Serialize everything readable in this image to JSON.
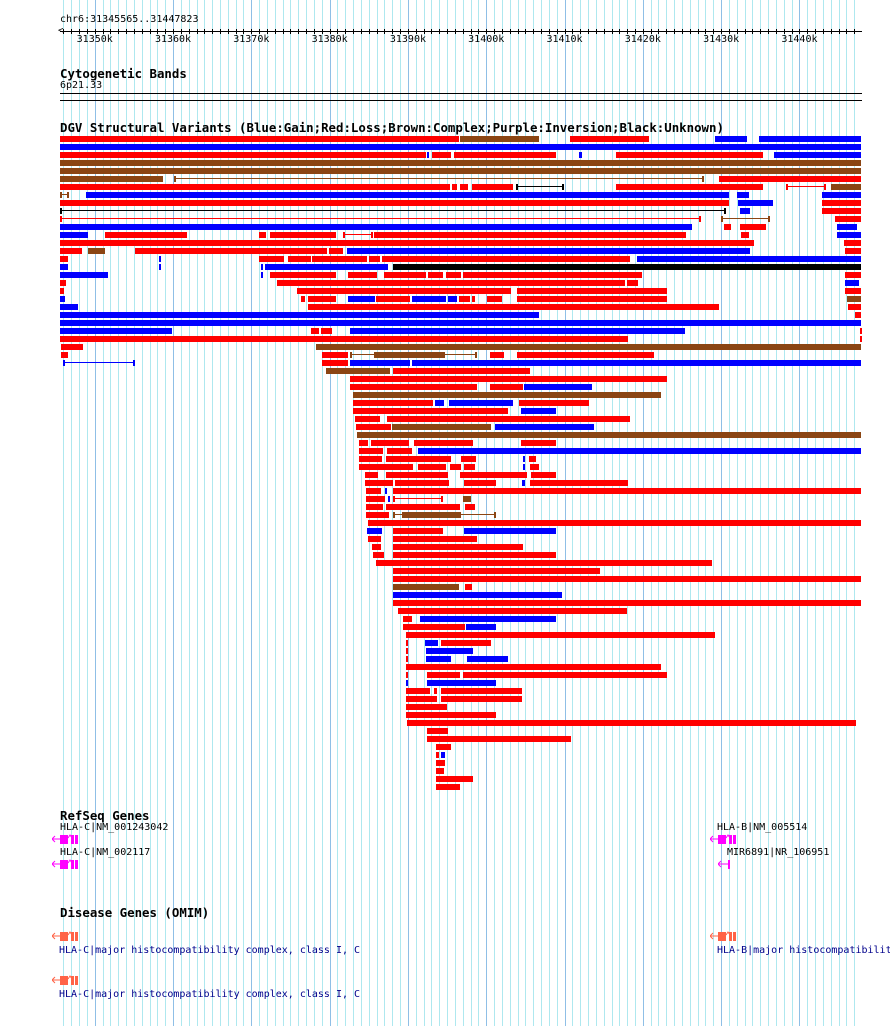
{
  "region": {
    "label": "chr6:31345565..31447823",
    "start_bp": 31345565,
    "end_bp": 31447823
  },
  "ruler": {
    "tick_labels": [
      "31350k",
      "31360k",
      "31370k",
      "31380k",
      "31390k",
      "31400k",
      "31410k",
      "31420k",
      "31430k",
      "31440k"
    ],
    "tick_values_kb": [
      31350,
      31360,
      31370,
      31380,
      31390,
      31400,
      31410,
      31420,
      31430,
      31440
    ]
  },
  "cytoband": {
    "title": "Cytogenetic Bands",
    "band": "6p21.33"
  },
  "dgv": {
    "title": "DGV Structural Variants (Blue:Gain;Red:Loss;Brown:Complex;Purple:Inversion;Black:Unknown)",
    "colors": {
      "r": "#ff0000",
      "b": "#0000ff",
      "n": "#8b4513",
      "k": "#000000"
    },
    "units": "kb from region start",
    "rows": [
      [
        [
          0,
          51.0,
          "r"
        ],
        [
          51.1,
          61.2,
          "n"
        ],
        [
          65.1,
          75.2,
          "r"
        ],
        [
          83.7,
          87.7,
          "b"
        ],
        [
          89.3,
          102.3,
          "b"
        ]
      ],
      [
        [
          0,
          102.3,
          "b"
        ]
      ],
      [
        [
          0,
          46.7,
          "r"
        ],
        [
          46.9,
          47.1,
          "b"
        ],
        [
          47.5,
          49.9,
          "r"
        ],
        [
          50.3,
          63.3,
          "r"
        ],
        [
          66.3,
          66.7,
          "b"
        ],
        [
          71.0,
          89.8,
          "r"
        ],
        [
          91.2,
          102.3,
          "b"
        ]
      ],
      [
        [
          0,
          102.3,
          "n"
        ]
      ],
      [
        [
          0,
          102.3,
          "n"
        ]
      ],
      [
        [
          0,
          13.2,
          "n"
        ],
        [
          14.6,
          82.2,
          "nl"
        ],
        [
          84.2,
          102.3,
          "r"
        ]
      ],
      [
        [
          0,
          49.8,
          "r"
        ],
        [
          50.1,
          50.7,
          "r"
        ],
        [
          51.1,
          52.1,
          "r"
        ],
        [
          52.6,
          57.9,
          "r"
        ],
        [
          58.2,
          64.4,
          "kl"
        ],
        [
          71.0,
          89.8,
          "r"
        ],
        [
          92.7,
          97.8,
          "rl"
        ],
        [
          98.5,
          102.3,
          "n"
        ]
      ],
      [
        [
          0,
          1.1,
          "nl"
        ],
        [
          3.3,
          85.4,
          "b"
        ],
        [
          86.5,
          88.0,
          "b"
        ],
        [
          97.3,
          102.3,
          "b"
        ]
      ],
      [
        [
          0,
          85.4,
          "r"
        ],
        [
          86.6,
          91.1,
          "b"
        ],
        [
          97.3,
          102.3,
          "r"
        ]
      ],
      [
        [
          0,
          85.1,
          "kl"
        ],
        [
          86.8,
          88.1,
          "b"
        ],
        [
          97.3,
          102.3,
          "r"
        ]
      ],
      [
        [
          0,
          81.9,
          "rl"
        ],
        [
          84.4,
          90.7,
          "nl"
        ],
        [
          99.0,
          102.3,
          "r"
        ]
      ],
      [
        [
          0,
          80.7,
          "b"
        ],
        [
          84.8,
          85.7,
          "r"
        ],
        [
          86.8,
          90.2,
          "r"
        ],
        [
          99.2,
          101.8,
          "b"
        ]
      ],
      [
        [
          0,
          3.6,
          "b"
        ],
        [
          5.7,
          16.2,
          "r"
        ],
        [
          25.4,
          26.3,
          "r"
        ],
        [
          26.8,
          35.2,
          "r"
        ],
        [
          36.1,
          40.0,
          "rl"
        ],
        [
          40.1,
          80.0,
          "r"
        ],
        [
          87.0,
          88.0,
          "r"
        ],
        [
          99.2,
          102.3,
          "b"
        ]
      ],
      [
        [
          0,
          88.6,
          "r"
        ],
        [
          100.1,
          102.3,
          "r"
        ]
      ],
      [
        [
          0,
          2.8,
          "r"
        ],
        [
          3.6,
          5.7,
          "n"
        ],
        [
          9.6,
          34.1,
          "r"
        ],
        [
          34.4,
          36.1,
          "r"
        ],
        [
          36.7,
          88.1,
          "b"
        ],
        [
          100.3,
          102.3,
          "r"
        ]
      ],
      [
        [
          0,
          1.0,
          "r"
        ],
        [
          12.6,
          12.9,
          "b"
        ],
        [
          25.4,
          28.6,
          "r"
        ],
        [
          29.1,
          32.1,
          "r"
        ],
        [
          32.2,
          39.2,
          "r"
        ],
        [
          39.5,
          40.9,
          "r"
        ],
        [
          41.1,
          72.8,
          "r"
        ],
        [
          73.7,
          102.3,
          "b"
        ]
      ],
      [
        [
          0,
          1.0,
          "b"
        ],
        [
          12.6,
          12.9,
          "b"
        ],
        [
          25.7,
          25.9,
          "b"
        ],
        [
          26.2,
          41.9,
          "b"
        ],
        [
          42.5,
          102.3,
          "k"
        ]
      ],
      [
        [
          0,
          6.1,
          "b"
        ],
        [
          25.7,
          25.9,
          "b"
        ],
        [
          26.8,
          35.2,
          "r"
        ],
        [
          36.8,
          40.5,
          "r"
        ],
        [
          41.4,
          46.7,
          "r"
        ],
        [
          47.0,
          48.9,
          "r"
        ],
        [
          49.3,
          51.2,
          "r"
        ],
        [
          51.5,
          74.3,
          "r"
        ],
        [
          100.3,
          102.3,
          "r"
        ]
      ],
      [
        [
          0,
          0.8,
          "r"
        ],
        [
          27.7,
          72.2,
          "r"
        ],
        [
          72.4,
          73.8,
          "r"
        ],
        [
          100.3,
          102.0,
          "b"
        ]
      ],
      [
        [
          0,
          0.5,
          "r"
        ],
        [
          30.3,
          57.6,
          "r"
        ],
        [
          58.4,
          77.5,
          "r"
        ],
        [
          100.3,
          102.3,
          "r"
        ]
      ],
      [
        [
          0,
          0.6,
          "b"
        ],
        [
          30.8,
          31.3,
          "r"
        ],
        [
          31.7,
          35.2,
          "r"
        ],
        [
          36.8,
          40.2,
          "b"
        ],
        [
          40.4,
          44.7,
          "r"
        ],
        [
          45.0,
          49.3,
          "b"
        ],
        [
          49.6,
          50.7,
          "b"
        ],
        [
          51.0,
          52.4,
          "r"
        ],
        [
          52.6,
          53.0,
          "r"
        ],
        [
          54.5,
          56.4,
          "r"
        ],
        [
          58.4,
          77.5,
          "r"
        ],
        [
          100.5,
          102.3,
          "n"
        ]
      ],
      [
        [
          0,
          2.3,
          "b"
        ],
        [
          31.7,
          84.2,
          "r"
        ],
        [
          100.6,
          102.3,
          "r"
        ]
      ],
      [
        [
          0,
          61.2,
          "b"
        ],
        [
          101.5,
          102.3,
          "r"
        ]
      ],
      [
        [
          0,
          102.3,
          "b"
        ]
      ],
      [
        [
          0,
          14.3,
          "b"
        ],
        [
          32.1,
          33.1,
          "r"
        ],
        [
          33.3,
          34.7,
          "r"
        ],
        [
          37.0,
          79.8,
          "b"
        ],
        [
          102.2,
          102.3,
          "r"
        ]
      ],
      [
        [
          0,
          72.5,
          "r"
        ],
        [
          102.2,
          102.3,
          "r"
        ]
      ],
      [
        [
          0.1,
          2.9,
          "r"
        ],
        [
          32.7,
          102.3,
          "n"
        ]
      ],
      [
        [
          0.1,
          1.0,
          "r"
        ],
        [
          33.5,
          36.8,
          "r"
        ],
        [
          37.0,
          40.4,
          "nl"
        ],
        [
          40.4,
          48.9,
          "n"
        ],
        [
          48.9,
          53.3,
          "nl"
        ],
        [
          54.9,
          56.7,
          "r"
        ],
        [
          58.4,
          75.9,
          "r"
        ]
      ],
      [
        [
          0.4,
          9.6,
          "bl"
        ],
        [
          33.5,
          36.8,
          "r"
        ],
        [
          37.0,
          44.7,
          "b"
        ],
        [
          45.0,
          102.3,
          "b"
        ]
      ],
      [
        [
          34.0,
          42.1,
          "n"
        ],
        [
          42.5,
          60.0,
          "r"
        ]
      ],
      [
        [
          37.0,
          77.5,
          "r"
        ]
      ],
      [
        [
          37.0,
          53.3,
          "r"
        ],
        [
          54.9,
          59.1,
          "r"
        ],
        [
          59.3,
          67.9,
          "b"
        ]
      ],
      [
        [
          37.4,
          76.8,
          "n"
        ]
      ],
      [
        [
          37.4,
          47.6,
          "r"
        ],
        [
          47.9,
          49.0,
          "b"
        ],
        [
          49.7,
          57.9,
          "b"
        ],
        [
          58.6,
          67.6,
          "r"
        ]
      ],
      [
        [
          37.4,
          57.2,
          "r"
        ],
        [
          58.9,
          63.3,
          "b"
        ]
      ],
      [
        [
          37.7,
          40.9,
          "r"
        ],
        [
          41.8,
          72.8,
          "r"
        ]
      ],
      [
        [
          37.8,
          42.3,
          "r"
        ],
        [
          42.4,
          55.0,
          "n"
        ],
        [
          55.6,
          68.2,
          "b"
        ]
      ],
      [
        [
          37.9,
          102.3,
          "n"
        ]
      ],
      [
        [
          38.2,
          39.3,
          "r"
        ],
        [
          39.7,
          44.6,
          "r"
        ],
        [
          45.2,
          52.7,
          "r"
        ],
        [
          58.9,
          63.3,
          "r"
        ]
      ],
      [
        [
          38.2,
          41.3,
          "r"
        ],
        [
          41.8,
          45.0,
          "r"
        ],
        [
          45.7,
          102.3,
          "b"
        ]
      ],
      [
        [
          38.2,
          41.1,
          "r"
        ],
        [
          41.6,
          49.9,
          "r"
        ],
        [
          51.2,
          53.1,
          "r"
        ],
        [
          59.1,
          59.4,
          "b"
        ],
        [
          59.9,
          60.8,
          "r"
        ]
      ],
      [
        [
          38.2,
          45.1,
          "r"
        ],
        [
          45.7,
          49.3,
          "r"
        ],
        [
          49.8,
          51.2,
          "r"
        ],
        [
          51.6,
          53.0,
          "r"
        ],
        [
          59.1,
          59.4,
          "b"
        ],
        [
          60.0,
          61.2,
          "r"
        ]
      ],
      [
        [
          39.0,
          40.6,
          "r"
        ],
        [
          41.6,
          49.6,
          "r"
        ],
        [
          51.1,
          59.6,
          "r"
        ],
        [
          60.2,
          63.3,
          "r"
        ]
      ],
      [
        [
          39.0,
          42.5,
          "r"
        ],
        [
          42.8,
          49.7,
          "r"
        ],
        [
          51.6,
          55.7,
          "r"
        ],
        [
          59.0,
          59.4,
          "b"
        ],
        [
          60.0,
          72.5,
          "r"
        ]
      ],
      [
        [
          39.1,
          41.0,
          "r"
        ],
        [
          41.5,
          41.8,
          "b"
        ],
        [
          42.5,
          102.3,
          "r"
        ]
      ],
      [
        [
          39.1,
          41.5,
          "r"
        ],
        [
          41.9,
          42.1,
          "b"
        ],
        [
          42.5,
          48.9,
          "rl"
        ],
        [
          51.5,
          52.5,
          "n"
        ]
      ],
      [
        [
          39.1,
          41.3,
          "r"
        ],
        [
          41.6,
          51.1,
          "r"
        ],
        [
          51.7,
          53.0,
          "r"
        ]
      ],
      [
        [
          39.1,
          42.0,
          "r"
        ],
        [
          42.5,
          43.9,
          "nl"
        ],
        [
          43.9,
          51.0,
          "n"
        ],
        [
          51.0,
          55.7,
          "nl"
        ]
      ],
      [
        [
          39.3,
          102.3,
          "r"
        ]
      ],
      [
        [
          39.2,
          41.1,
          "b"
        ],
        [
          42.5,
          48.9,
          "r"
        ],
        [
          51.6,
          63.3,
          "b"
        ]
      ],
      [
        [
          39.3,
          41.0,
          "r"
        ],
        [
          42.5,
          53.3,
          "r"
        ]
      ],
      [
        [
          39.8,
          41.0,
          "r"
        ],
        [
          42.5,
          59.1,
          "r"
        ]
      ],
      [
        [
          40.0,
          41.4,
          "r"
        ],
        [
          42.5,
          63.3,
          "r"
        ]
      ],
      [
        [
          40.4,
          83.3,
          "r"
        ]
      ],
      [
        [
          42.5,
          69.0,
          "r"
        ]
      ],
      [
        [
          42.5,
          102.3,
          "r"
        ]
      ],
      [
        [
          42.5,
          51.0,
          "n"
        ],
        [
          51.7,
          52.6,
          "r"
        ]
      ],
      [
        [
          42.5,
          64.1,
          "b"
        ]
      ],
      [
        [
          42.5,
          102.3,
          "r"
        ]
      ],
      [
        [
          43.2,
          72.4,
          "r"
        ]
      ],
      [
        [
          43.8,
          45.0,
          "r"
        ],
        [
          46.0,
          63.3,
          "b"
        ]
      ],
      [
        [
          43.8,
          51.7,
          "r"
        ],
        [
          51.9,
          55.7,
          "b"
        ]
      ],
      [
        [
          44.2,
          83.7,
          "r"
        ]
      ],
      [
        [
          44.2,
          44.4,
          "r"
        ],
        [
          46.6,
          48.3,
          "b"
        ],
        [
          48.7,
          55.0,
          "r"
        ]
      ],
      [
        [
          44.2,
          44.4,
          "r"
        ],
        [
          46.7,
          52.7,
          "b"
        ]
      ],
      [
        [
          44.2,
          44.4,
          "r"
        ],
        [
          46.7,
          49.9,
          "b"
        ],
        [
          52.0,
          57.2,
          "b"
        ]
      ],
      [
        [
          44.2,
          76.8,
          "r"
        ]
      ],
      [
        [
          44.2,
          44.4,
          "r"
        ],
        [
          46.9,
          51.1,
          "r"
        ],
        [
          51.5,
          77.5,
          "r"
        ]
      ],
      [
        [
          44.2,
          44.4,
          "b"
        ],
        [
          46.9,
          55.7,
          "b"
        ]
      ],
      [
        [
          44.2,
          47.3,
          "r"
        ],
        [
          47.8,
          48.1,
          "r"
        ],
        [
          48.7,
          59.0,
          "r"
        ]
      ],
      [
        [
          44.2,
          48.1,
          "r"
        ],
        [
          48.7,
          59.0,
          "r"
        ]
      ],
      [
        [
          44.2,
          49.4,
          "r"
        ]
      ],
      [
        [
          44.2,
          55.7,
          "r"
        ]
      ],
      [
        [
          44.3,
          101.7,
          "r"
        ]
      ],
      [
        [
          46.9,
          49.6,
          "r"
        ]
      ],
      [
        [
          46.9,
          65.3,
          "r"
        ]
      ],
      [
        [
          48.0,
          49.9,
          "r"
        ]
      ],
      [
        [
          48.0,
          48.4,
          "r"
        ],
        [
          48.7,
          49.2,
          "b"
        ]
      ],
      [
        [
          48.0,
          49.2,
          "r"
        ]
      ],
      [
        [
          48.0,
          49.0,
          "r"
        ]
      ],
      [
        [
          48.0,
          52.7,
          "r"
        ]
      ],
      [
        [
          48.0,
          51.1,
          "r"
        ]
      ]
    ]
  },
  "refseq": {
    "title": "RefSeq Genes",
    "color": "#ff00ff",
    "genes": [
      {
        "label": "HLA-C|NM_001243042"
      },
      {
        "label": "HLA-C|NM_002117"
      },
      {
        "label": "HLA-B|NM_005514"
      },
      {
        "label": "MIR6891|NR_106951"
      }
    ]
  },
  "omim": {
    "title": "Disease Genes (OMIM)",
    "color": "#ff6347",
    "genes": [
      {
        "label": "HLA-C|major histocompatibility complex, class I, C"
      },
      {
        "label": "HLA-C|major histocompatibility complex, class I, C"
      },
      {
        "label": "HLA-B|major histocompatibilit"
      }
    ]
  }
}
